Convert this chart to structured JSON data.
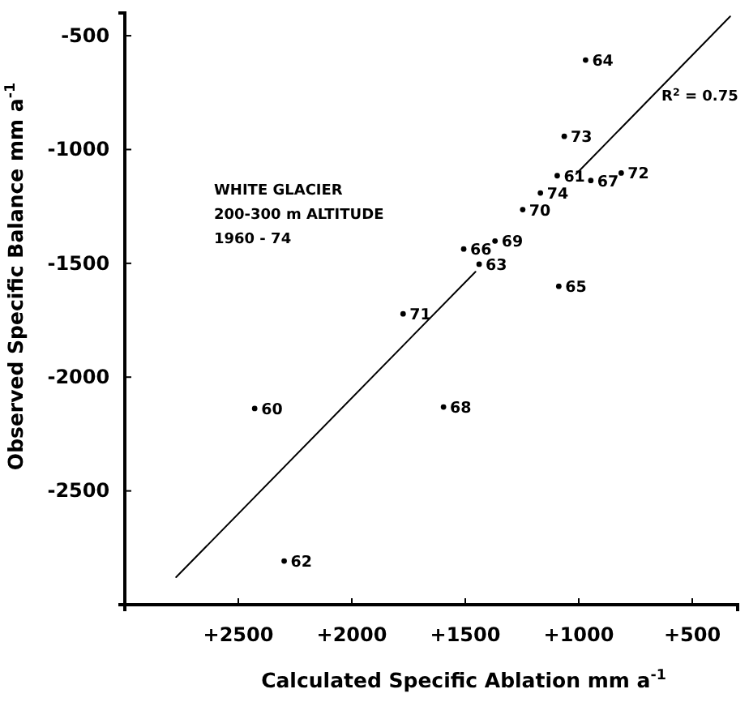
{
  "chart_data": {
    "type": "scatter",
    "xlabel": "Calculated Specific Ablation mm a$^{-1}$",
    "ylabel": "Observed Specific Balance mm a$^{-1}$",
    "xlim": [
      3000,
      300
    ],
    "ylim": [
      -3000,
      -400
    ],
    "xticks": [
      {
        "value": 2500,
        "label": "+2500"
      },
      {
        "value": 2000,
        "label": "+2000"
      },
      {
        "value": 1500,
        "label": "+1500"
      },
      {
        "value": 1000,
        "label": "+1000"
      },
      {
        "value": 500,
        "label": "+500"
      }
    ],
    "yticks": [
      -500,
      -1000,
      -1500,
      -2000,
      -2500
    ],
    "grid": false,
    "marker": "circle",
    "annotations": [
      "WHITE GLACIER",
      "200-300 m ALTITUDE",
      "1960 - 74",
      "R$^{2}$ = 0.75",
      {
        "text": "64",
        "x": 970,
        "y": -607
      },
      {
        "text": "73",
        "x": 1064,
        "y": -942
      },
      {
        "text": "61",
        "x": 1095,
        "y": -1115
      },
      {
        "text": "67",
        "x": 947,
        "y": -1136
      },
      {
        "text": "72",
        "x": 813,
        "y": -1103
      },
      {
        "text": "74",
        "x": 1169,
        "y": -1191
      },
      {
        "text": "70",
        "x": 1247,
        "y": -1264
      },
      {
        "text": "66",
        "x": 1507,
        "y": -1437
      },
      {
        "text": "69",
        "x": 1369,
        "y": -1402
      },
      {
        "text": "63",
        "x": 1439,
        "y": -1504
      },
      {
        "text": "65",
        "x": 1088,
        "y": -1601
      },
      {
        "text": "71",
        "x": 1774,
        "y": -1722
      },
      {
        "text": "60",
        "x": 2428,
        "y": -2138
      },
      {
        "text": "68",
        "x": 1596,
        "y": -2131
      },
      {
        "text": "62",
        "x": 2298,
        "y": -2808
      }
    ],
    "series": [
      {
        "color": "#000000",
        "x": [
          970,
          1064,
          1095,
          947,
          813,
          1169,
          1247,
          1507,
          1369,
          1439,
          1088,
          1774,
          2428,
          1596,
          2298
        ],
        "values": [
          -607,
          -942,
          -1115,
          -1136,
          -1103,
          -1191,
          -1264,
          -1437,
          -1402,
          -1504,
          -1601,
          -1722,
          -2138,
          -2131,
          -2808
        ]
      },
      {
        "type": "line",
        "color": "#000000",
        "line_style": "solid",
        "marker": "none",
        "x": [
          2774,
          1455,
          1200,
          1012,
          333
        ],
        "values": [
          -2879,
          -1537,
          null,
          -1108,
          -415
        ]
      }
    ]
  }
}
